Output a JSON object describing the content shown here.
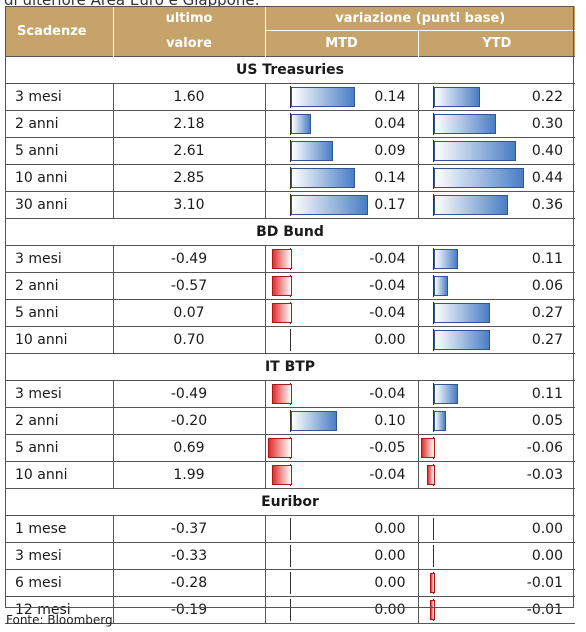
{
  "cut_title": "di ulteriore Area Euro e Giappone:",
  "headers": {
    "maturity": "Scadenze",
    "last_top": "ultimo",
    "last_bottom": "valore",
    "change": "variazione (punti base)",
    "mtd": "MTD",
    "ytd": "YTD"
  },
  "sections": [
    {
      "name": "US Treasuries",
      "rows": [
        {
          "label": "3 mesi",
          "value": "1.60",
          "mtd": "0.14",
          "ytd": "0.22",
          "mtd_n": 0.14,
          "ytd_n": 0.22
        },
        {
          "label": "2 anni",
          "value": "2.18",
          "mtd": "0.04",
          "ytd": "0.30",
          "mtd_n": 0.04,
          "ytd_n": 0.3
        },
        {
          "label": "5 anni",
          "value": "2.61",
          "mtd": "0.09",
          "ytd": "0.40",
          "mtd_n": 0.09,
          "ytd_n": 0.4
        },
        {
          "label": "10 anni",
          "value": "2.85",
          "mtd": "0.14",
          "ytd": "0.44",
          "mtd_n": 0.14,
          "ytd_n": 0.44
        },
        {
          "label": "30 anni",
          "value": "3.10",
          "mtd": "0.17",
          "ytd": "0.36",
          "mtd_n": 0.17,
          "ytd_n": 0.36
        }
      ]
    },
    {
      "name": "BD Bund",
      "rows": [
        {
          "label": "3 mesi",
          "value": "-0.49",
          "mtd": "-0.04",
          "ytd": "0.11",
          "mtd_n": -0.04,
          "ytd_n": 0.11
        },
        {
          "label": "2 anni",
          "value": "-0.57",
          "mtd": "-0.04",
          "ytd": "0.06",
          "mtd_n": -0.04,
          "ytd_n": 0.06
        },
        {
          "label": "5 anni",
          "value": "0.07",
          "mtd": "-0.04",
          "ytd": "0.27",
          "mtd_n": -0.04,
          "ytd_n": 0.27
        },
        {
          "label": "10 anni",
          "value": "0.70",
          "mtd": "0.00",
          "ytd": "0.27",
          "mtd_n": 0.0,
          "ytd_n": 0.27
        }
      ]
    },
    {
      "name": "IT BTP",
      "rows": [
        {
          "label": "3 mesi",
          "value": "-0.49",
          "mtd": "-0.04",
          "ytd": "0.11",
          "mtd_n": -0.04,
          "ytd_n": 0.11
        },
        {
          "label": "2 anni",
          "value": "-0.20",
          "mtd": "0.10",
          "ytd": "0.05",
          "mtd_n": 0.1,
          "ytd_n": 0.05
        },
        {
          "label": "5 anni",
          "value": "0.69",
          "mtd": "-0.05",
          "ytd": "-0.06",
          "mtd_n": -0.05,
          "ytd_n": -0.06
        },
        {
          "label": "10 anni",
          "value": "1.99",
          "mtd": "-0.04",
          "ytd": "-0.03",
          "mtd_n": -0.04,
          "ytd_n": -0.03
        }
      ]
    },
    {
      "name": "Euribor",
      "rows": [
        {
          "label": "1 mese",
          "value": "-0.37",
          "mtd": "0.00",
          "ytd": "0.00",
          "mtd_n": 0.0,
          "ytd_n": 0.0
        },
        {
          "label": "3 mesi",
          "value": "-0.33",
          "mtd": "0.00",
          "ytd": "0.00",
          "mtd_n": 0.0,
          "ytd_n": 0.0
        },
        {
          "label": "6 mesi",
          "value": "-0.28",
          "mtd": "0.00",
          "ytd": "-0.01",
          "mtd_n": 0.0,
          "ytd_n": -0.01
        },
        {
          "label": "12 mesi",
          "value": "-0.19",
          "mtd": "0.00",
          "ytd": "-0.01",
          "mtd_n": 0.0,
          "ytd_n": -0.01
        }
      ]
    }
  ],
  "source": "Fonte: Bloomberg",
  "colors": {
    "header_bg": "#c6a368",
    "positive": "#4a7ec5",
    "negative": "#e03030"
  }
}
